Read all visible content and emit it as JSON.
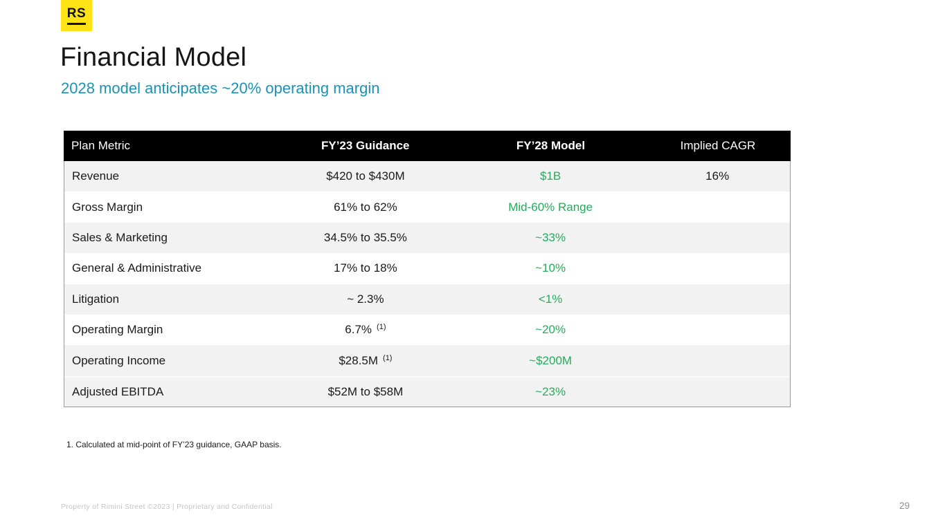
{
  "logo": {
    "text": "RS"
  },
  "header": {
    "title": "Financial Model",
    "subtitle": "2028 model anticipates ~20% operating margin"
  },
  "table": {
    "columns": [
      "Plan Metric",
      "FY’23 Guidance",
      "FY’28 Model",
      "Implied CAGR"
    ],
    "rows": [
      {
        "metric": "Revenue",
        "fy23": "$420 to $430M",
        "fy28": "$1B",
        "cagr": "16%"
      },
      {
        "metric": "Gross Margin",
        "fy23": "61% to 62%",
        "fy28": "Mid-60% Range",
        "cagr": ""
      },
      {
        "metric": "Sales & Marketing",
        "fy23": "34.5% to 35.5%",
        "fy28": "~33%",
        "cagr": ""
      },
      {
        "metric": "General & Administrative",
        "fy23": "17% to 18%",
        "fy28": "~10%",
        "cagr": ""
      },
      {
        "metric": "Litigation",
        "fy23": "~ 2.3%",
        "fy28": "<1%",
        "cagr": ""
      },
      {
        "metric": "Operating Margin",
        "fy23": "6.7%",
        "fy23_note": "(1)",
        "fy28": "~20%",
        "cagr": ""
      },
      {
        "metric": "Operating Income",
        "fy23": "$28.5M",
        "fy23_note": "(1)",
        "fy28": "~$200M",
        "cagr": ""
      },
      {
        "metric": "Adjusted EBITDA",
        "fy23": "$52M to $58M",
        "fy28": "~23%",
        "cagr": ""
      }
    ]
  },
  "footnote": "1. Calculated at mid-point of FY’23 guidance, GAAP basis.",
  "footer": {
    "left": "Property of Rimini Street ©2023  |  Proprietary and Confidential",
    "page_number": "29"
  },
  "colors": {
    "brand_yellow": "#ffe314",
    "subtitle_teal": "#1d91b4",
    "accent_green": "#28a95c",
    "header_bg": "#000000",
    "row_alt_gray": "#f2f2f2"
  }
}
